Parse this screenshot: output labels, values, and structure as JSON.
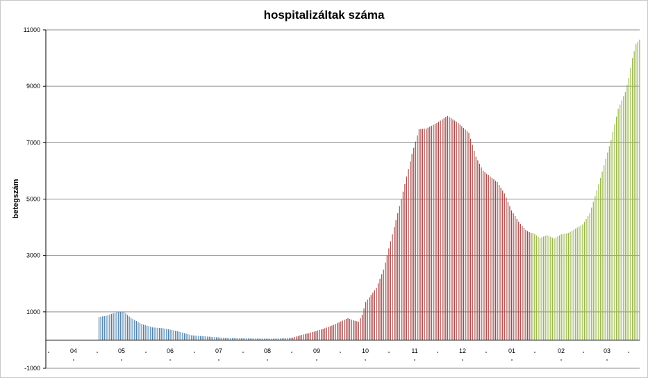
{
  "chart_data": {
    "type": "bar",
    "title": "hospitalizáltak száma",
    "ylabel": "betegszám",
    "xlabel": "",
    "ylim": [
      -1000,
      11000
    ],
    "y_ticks": [
      "11000",
      "9000",
      "7000",
      "5000",
      "3000",
      "1000",
      "-1000"
    ],
    "month_labels": [
      "04",
      "05",
      "06",
      "07",
      "08",
      "09",
      "10",
      "11",
      "12",
      "01",
      "02",
      "03"
    ],
    "grid": true,
    "colors": {
      "wave1": "#4a7ea8",
      "wave2": "#a64545",
      "wave3": "#9ab648",
      "grid": "#8c8c8c",
      "axis": "#000000"
    },
    "series": [
      {
        "segment": "wave1",
        "color": "#4a7ea8",
        "keyframes": [
          [
            0,
            820
          ],
          [
            4,
            860
          ],
          [
            8,
            950
          ],
          [
            11,
            1010
          ],
          [
            14,
            1000
          ],
          [
            18,
            780
          ],
          [
            24,
            570
          ],
          [
            30,
            450
          ],
          [
            36,
            420
          ],
          [
            44,
            320
          ],
          [
            52,
            170
          ],
          [
            60,
            130
          ],
          [
            70,
            80
          ],
          [
            90,
            50
          ],
          [
            100,
            50
          ],
          [
            108,
            80
          ]
        ]
      },
      {
        "segment": "wave2",
        "color": "#a64545",
        "keyframes": [
          [
            109,
            90
          ],
          [
            115,
            200
          ],
          [
            121,
            300
          ],
          [
            127,
            420
          ],
          [
            132,
            540
          ],
          [
            136,
            660
          ],
          [
            140,
            780
          ],
          [
            143,
            700
          ],
          [
            146,
            650
          ],
          [
            148,
            900
          ],
          [
            150,
            1350
          ],
          [
            156,
            1850
          ],
          [
            160,
            2500
          ],
          [
            164,
            3500
          ],
          [
            170,
            5000
          ],
          [
            176,
            6600
          ],
          [
            180,
            7480
          ],
          [
            184,
            7500
          ],
          [
            190,
            7700
          ],
          [
            196,
            7950
          ],
          [
            202,
            7700
          ],
          [
            208,
            7350
          ],
          [
            212,
            6500
          ],
          [
            216,
            6000
          ],
          [
            220,
            5800
          ],
          [
            224,
            5600
          ],
          [
            228,
            5200
          ],
          [
            232,
            4600
          ],
          [
            236,
            4200
          ],
          [
            240,
            3900
          ],
          [
            243,
            3800
          ]
        ]
      },
      {
        "segment": "wave3",
        "color": "#9ab648",
        "keyframes": [
          [
            244,
            3800
          ],
          [
            248,
            3620
          ],
          [
            252,
            3720
          ],
          [
            256,
            3600
          ],
          [
            260,
            3750
          ],
          [
            264,
            3800
          ],
          [
            268,
            3950
          ],
          [
            272,
            4100
          ],
          [
            276,
            4500
          ],
          [
            280,
            5300
          ],
          [
            284,
            6200
          ],
          [
            288,
            7100
          ],
          [
            292,
            8200
          ],
          [
            296,
            8800
          ],
          [
            298,
            9300
          ],
          [
            300,
            10000
          ],
          [
            302,
            10500
          ],
          [
            304,
            10650
          ]
        ]
      }
    ]
  }
}
